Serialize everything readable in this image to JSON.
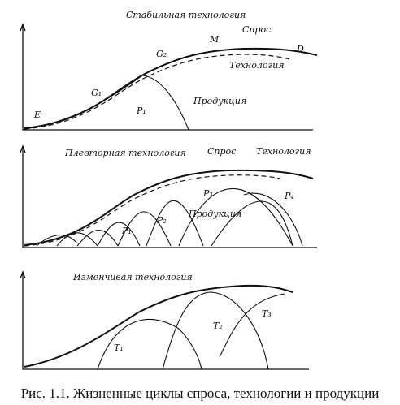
{
  "panels": [
    {
      "title": "Стабильная технология",
      "demand": "Спрос",
      "technology": "Технология",
      "production": "Продукция",
      "points": [
        "E",
        "G₁",
        "G₂",
        "M",
        "D"
      ],
      "products": [
        "P₁"
      ]
    },
    {
      "title": "Плевторная технология",
      "demand": "Спрос",
      "technology": "Технология",
      "production": "Продукция",
      "products": [
        "P₁",
        "P₂",
        "P₃",
        "P₄"
      ]
    },
    {
      "title": "Изменчивая технология",
      "products": [
        "T₁",
        "T₂",
        "T₃"
      ]
    }
  ],
  "caption": "Рис. 1.1. Жизненные циклы спроса, технологии и продукции"
}
